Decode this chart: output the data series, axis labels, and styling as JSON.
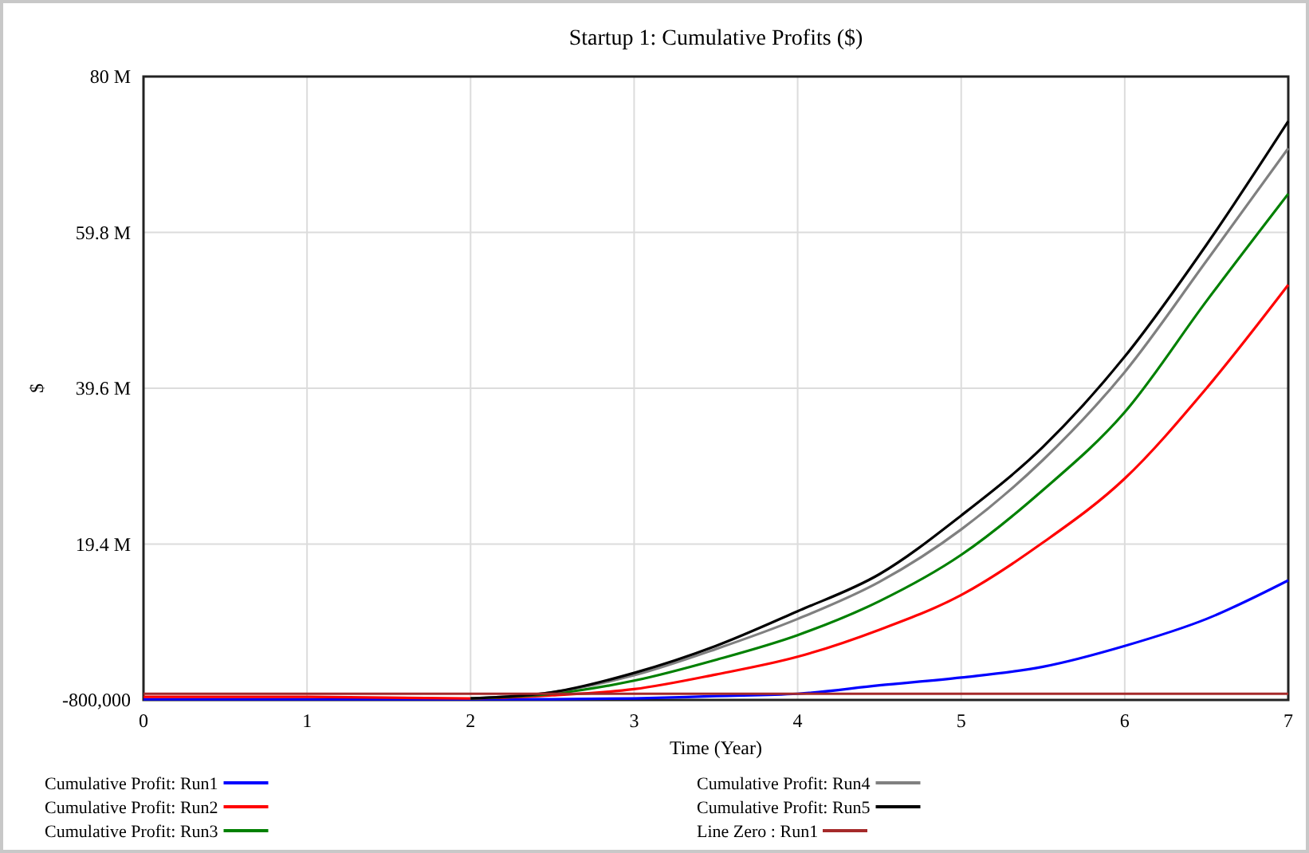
{
  "chart_data": {
    "type": "line",
    "title": "Startup 1: Cumulative Profits ($)",
    "xlabel": "Time (Year)",
    "ylabel": "$",
    "x": [
      0,
      1,
      2,
      2.5,
      3,
      3.5,
      4,
      4.5,
      5,
      5.5,
      6,
      6.5,
      7
    ],
    "xlim": [
      0,
      7
    ],
    "xticks": [
      0,
      1,
      2,
      3,
      4,
      5,
      6,
      7
    ],
    "ylim": [
      -800000,
      80000000
    ],
    "yticks": [
      {
        "value": -800000,
        "label": "-800,000"
      },
      {
        "value": 19400000,
        "label": "19.4 M"
      },
      {
        "value": 39600000,
        "label": "39.6 M"
      },
      {
        "value": 59800000,
        "label": "59.8 M"
      },
      {
        "value": 80000000,
        "label": "80 M"
      }
    ],
    "grid": true,
    "legend": "bottom",
    "marker": "none",
    "line_style": "solid",
    "series": [
      {
        "name": "Cumulative Profit: Run1",
        "color": "#0000ff",
        "values": [
          -700000,
          -700000,
          -700000,
          -700000,
          -600000,
          -300000,
          0,
          1100000,
          2100000,
          3500000,
          6200000,
          9700000,
          14700000
        ]
      },
      {
        "name": "Cumulative Profit: Run2",
        "color": "#ff0000",
        "values": [
          -400000,
          -400000,
          -600000,
          -200000,
          600000,
          2500000,
          4800000,
          8300000,
          12800000,
          19600000,
          27900000,
          39600000,
          53000000
        ]
      },
      {
        "name": "Cumulative Profit: Run3",
        "color": "#008000",
        "values": [
          null,
          null,
          -600000,
          0,
          1700000,
          4400000,
          7600000,
          12000000,
          18000000,
          26400000,
          36500000,
          50900000,
          64800000
        ]
      },
      {
        "name": "Cumulative Profit: Run4",
        "color": "#808080",
        "values": [
          null,
          null,
          -600000,
          200000,
          2400000,
          5800000,
          9700000,
          14500000,
          21300000,
          30300000,
          41700000,
          56100000,
          70700000
        ]
      },
      {
        "name": "Cumulative Profit: Run5",
        "color": "#000000",
        "values": [
          null,
          null,
          -600000,
          200000,
          2700000,
          6200000,
          10700000,
          15500000,
          23100000,
          32000000,
          43700000,
          58200000,
          74200000
        ]
      },
      {
        "name": "Line Zero : Run1",
        "color": "#a52a2a",
        "values": [
          0,
          0,
          0,
          0,
          0,
          0,
          0,
          0,
          0,
          0,
          0,
          0,
          0
        ]
      }
    ]
  }
}
